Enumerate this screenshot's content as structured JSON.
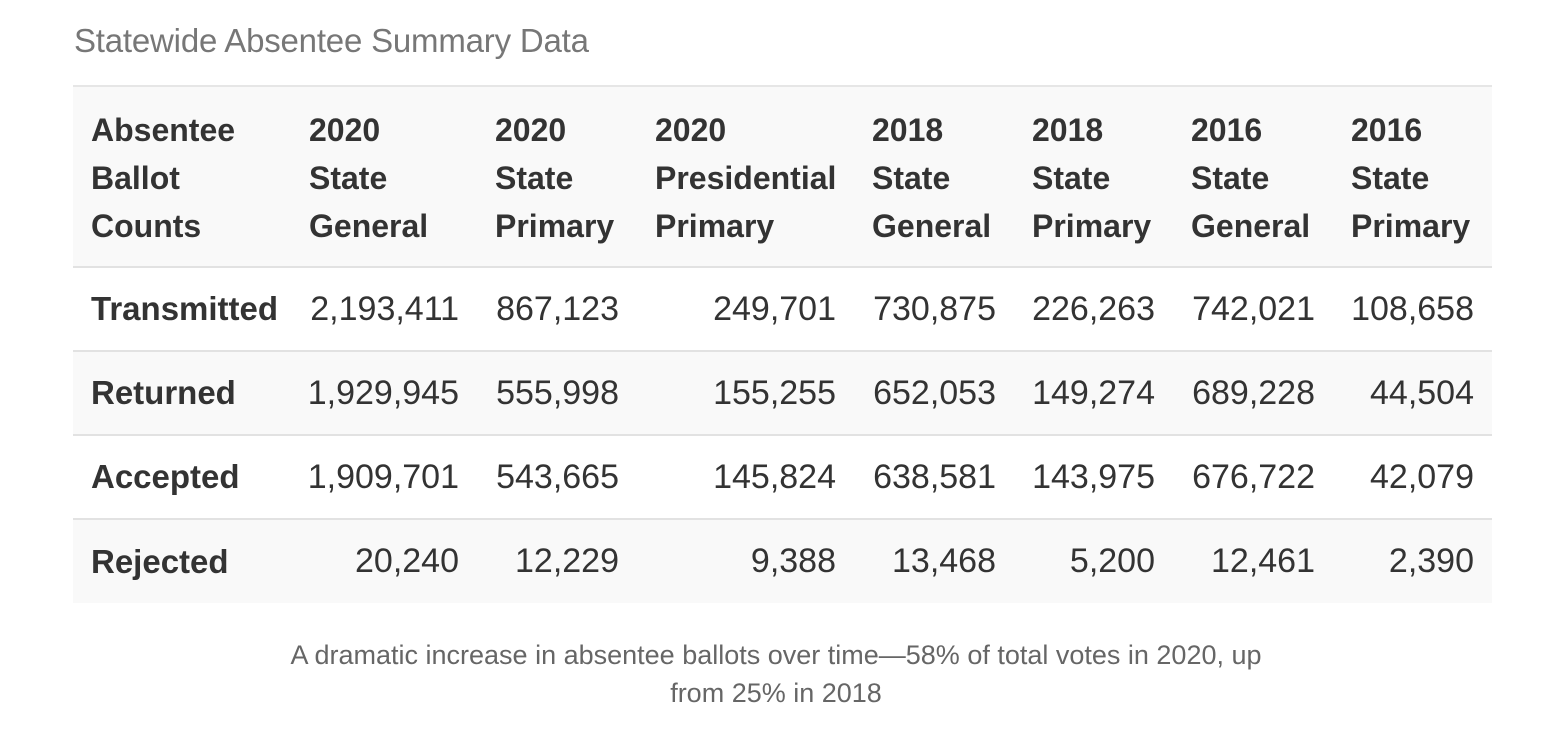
{
  "title": "Statewide Absentee Summary Data",
  "table": {
    "headers": [
      [
        "Absentee",
        "Ballot",
        "Counts"
      ],
      [
        "2020",
        "State",
        "General"
      ],
      [
        "2020",
        "State",
        "Primary"
      ],
      [
        "2020",
        "Presidential",
        "Primary"
      ],
      [
        "2018",
        "State",
        "General"
      ],
      [
        "2018",
        "State",
        "Primary"
      ],
      [
        "2016",
        "State",
        "General"
      ],
      [
        "2016",
        "State",
        "Primary"
      ]
    ],
    "rows": [
      {
        "label": "Transmitted",
        "values": [
          "2,193,411",
          "867,123",
          "249,701",
          "730,875",
          "226,263",
          "742,021",
          "108,658"
        ]
      },
      {
        "label": "Returned",
        "values": [
          "1,929,945",
          "555,998",
          "155,255",
          "652,053",
          "149,274",
          "689,228",
          "44,504"
        ]
      },
      {
        "label": "Accepted",
        "values": [
          "1,909,701",
          "543,665",
          "145,824",
          "638,581",
          "143,975",
          "676,722",
          "42,079"
        ]
      },
      {
        "label": "Rejected",
        "values": [
          "20,240",
          "12,229",
          "9,388",
          "13,468",
          "5,200",
          "12,461",
          "2,390"
        ]
      }
    ]
  },
  "caption": {
    "line1": "A dramatic increase in absentee ballots over time—58% of total votes in 2020, up",
    "line2": "from 25% in 2018"
  }
}
